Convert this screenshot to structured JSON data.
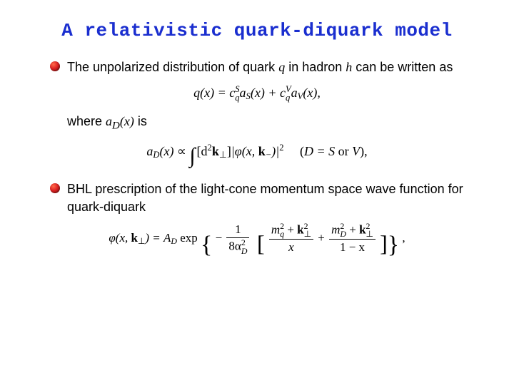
{
  "title_color": "#1a2ecf",
  "title": "A relativistic quark-diquark model",
  "bullets": [
    {
      "pre": "The unpolarized distribution of quark ",
      "q": "q",
      "mid": " in hadron ",
      "h": "h",
      "post": " can be written as"
    },
    {
      "text": "BHL prescription of the light-cone momentum space wave function for quark-diquark"
    }
  ],
  "where_label_pre": "where ",
  "where_math": "a",
  "where_sub": "D",
  "where_math2": "(x)",
  "where_label_post": " is",
  "eq1": {
    "lhs": "q(x) = ",
    "c": "c",
    "sup1": "S",
    "sub1": "q",
    "aS": "a",
    "subS": "S",
    "xS": "(x) + ",
    "sup2": "V",
    "sub2": "q",
    "aV": "a",
    "subV": "V",
    "xV": "(x),"
  },
  "eq2": {
    "a": "a",
    "subD": "D",
    "x": "(x) ",
    "propto": "∝ ",
    "d2": "[d",
    "two": "2",
    "k": "k",
    "perp": "⊥",
    "close": "]",
    "phi": "|φ(x, ",
    "kbold": "k",
    "minus": "−",
    "end": ")|",
    "sq": "2",
    "note_open": "(",
    "D": "D = S ",
    "or": "or ",
    "V": "V",
    "note_close": "),"
  },
  "eq3": {
    "lhs_phi": "φ(x, ",
    "lhs_k": "k",
    "lhs_perp": "⊥",
    "lhs_close": ") = ",
    "A": "A",
    "AD": "D",
    "exp": " exp ",
    "minus": "− ",
    "frac1_num": "1",
    "frac1_den_8a": "8α",
    "frac1_den_sub": "D",
    "frac1_den_sq": "2",
    "f2_num_m": "m",
    "f2_num_sub": "q",
    "f2_num_sq": "2",
    "f2_num_plus": " + ",
    "f2_num_k": "k",
    "f2_num_perp": "⊥",
    "f2_num_ksq": "2",
    "f2_den": "x",
    "plus": " + ",
    "f3_num_m": "m",
    "f3_num_sub": "D",
    "f3_num_sq": "2",
    "f3_num_plus": " + ",
    "f3_num_k": "k",
    "f3_num_perp": "⊥",
    "f3_num_ksq": "2",
    "f3_den": "1 − x",
    "tail": " ,"
  }
}
